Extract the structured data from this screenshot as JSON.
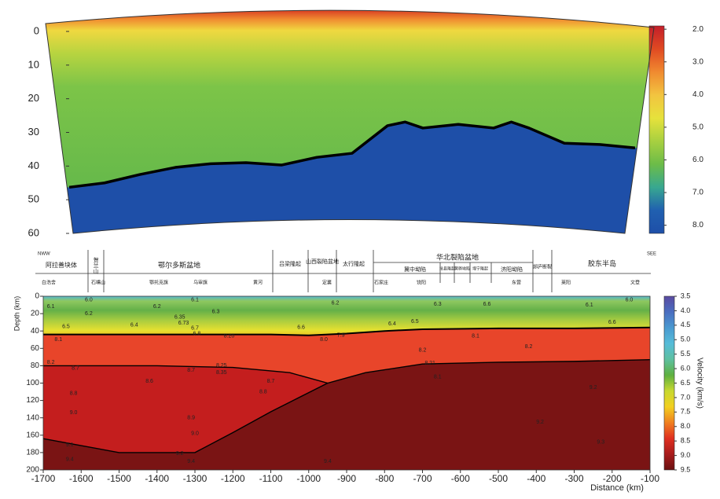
{
  "chart_data": [
    {
      "type": "contour",
      "x": [
        -1700,
        -1600,
        -1500,
        -1400,
        -1300,
        -1200,
        -1100,
        -1000,
        -900,
        -800,
        -750,
        -700,
        -600,
        -500,
        -450,
        -400,
        -300,
        -200,
        -100
      ],
      "values": [
        46.3,
        45,
        42.5,
        40.4,
        39.3,
        39,
        39.7,
        37.4,
        36.2,
        28,
        26.9,
        28.7,
        27.6,
        28.7,
        26.9,
        28.7,
        33.2,
        33.6,
        34.6
      ],
      "xlim": [
        -1700,
        -100
      ],
      "ylim": [
        0,
        60
      ],
      "y_inverted": true,
      "yticks": [
        0,
        10,
        20,
        30,
        40,
        50,
        60
      ],
      "line_color": "#000000",
      "below_color": "#1e4fa8",
      "colorbar": {
        "lim": [
          1.9,
          8.25
        ],
        "ticks": [
          {
            "value": 2,
            "label": "2.0"
          },
          {
            "value": 3,
            "label": "3.0"
          },
          {
            "value": 4,
            "label": "4.0"
          },
          {
            "value": 5,
            "label": "5.0"
          },
          {
            "value": 6,
            "label": "6.0"
          },
          {
            "value": 7,
            "label": "7.0"
          },
          {
            "value": 8,
            "label": "8.0"
          }
        ],
        "colormap": [
          "#c41e2a",
          "#e04a22",
          "#f08a30",
          "#f2c440",
          "#e6e23c",
          "#a8d040",
          "#6cbc48",
          "#38a890",
          "#2060b0",
          "#1e4fa8"
        ]
      }
    },
    {
      "type": "contour",
      "xlabel": "Distance (km)",
      "ylabel": "Depth (km)",
      "xlim": [
        -1700,
        -100
      ],
      "xticks": [
        -1700,
        -1600,
        -1500,
        -1400,
        -1300,
        -1200,
        -1100,
        -1000,
        -900,
        -800,
        -700,
        -600,
        -500,
        -400,
        -300,
        -200,
        -100
      ],
      "ylim": [
        0,
        200
      ],
      "y_inverted": true,
      "yticks": [
        0,
        20,
        40,
        60,
        80,
        100,
        120,
        140,
        160,
        180,
        200
      ],
      "series": [
        {
          "color": "#000000",
          "x": [
            -1700,
            -1500,
            -1300,
            -1100,
            -1000,
            -900,
            -800,
            -700,
            -500,
            -300,
            -100
          ],
          "values": [
            44,
            44,
            44,
            44,
            45,
            43,
            40,
            38,
            37,
            37,
            36
          ]
        },
        {
          "color": "#000000",
          "x": [
            -1700,
            -1400,
            -1200,
            -1050,
            -950,
            -850,
            -700,
            -500,
            -300,
            -100
          ],
          "values": [
            80,
            80,
            82,
            88,
            100,
            88,
            78,
            76,
            75,
            73
          ]
        },
        {
          "color": "#000000",
          "x": [
            -1700,
            -1600,
            -1500,
            -1300,
            -1200,
            -1100,
            -950
          ],
          "values": [
            164,
            172,
            180,
            180,
            157,
            133,
            100
          ]
        }
      ],
      "annotations": [
        {
          "text": "6.0",
          "x": -1580,
          "y": 4
        },
        {
          "text": "6.1",
          "x": -1680,
          "y": 12
        },
        {
          "text": "6.2",
          "x": -1580,
          "y": 20
        },
        {
          "text": "6.5",
          "x": -1640,
          "y": 35
        },
        {
          "text": "6.4",
          "x": -1460,
          "y": 33
        },
        {
          "text": "6.2",
          "x": -1400,
          "y": 12
        },
        {
          "text": "6.1",
          "x": -1300,
          "y": 4
        },
        {
          "text": "6.3",
          "x": -1245,
          "y": 18
        },
        {
          "text": "6.35",
          "x": -1340,
          "y": 24
        },
        {
          "text": "6.73",
          "x": -1330,
          "y": 31
        },
        {
          "text": "6.7",
          "x": -1300,
          "y": 37
        },
        {
          "text": "6.8",
          "x": -1295,
          "y": 43
        },
        {
          "text": "8.1",
          "x": -1660,
          "y": 50
        },
        {
          "text": "8.20",
          "x": -1210,
          "y": 46
        },
        {
          "text": "6.6",
          "x": -1020,
          "y": 36
        },
        {
          "text": "6.2",
          "x": -930,
          "y": 8
        },
        {
          "text": "8.2",
          "x": -1680,
          "y": 76
        },
        {
          "text": "8.7",
          "x": -1615,
          "y": 83
        },
        {
          "text": "8.7",
          "x": -1310,
          "y": 85
        },
        {
          "text": "8.25",
          "x": -1230,
          "y": 80
        },
        {
          "text": "8.35",
          "x": -1230,
          "y": 88
        },
        {
          "text": "8.6",
          "x": -1420,
          "y": 98
        },
        {
          "text": "8.7",
          "x": -1100,
          "y": 98
        },
        {
          "text": "8.8",
          "x": -1620,
          "y": 112
        },
        {
          "text": "8.8",
          "x": -1120,
          "y": 110
        },
        {
          "text": "9.0",
          "x": -1620,
          "y": 134
        },
        {
          "text": "8.9",
          "x": -1310,
          "y": 140
        },
        {
          "text": "9.0",
          "x": -1300,
          "y": 158
        },
        {
          "text": "9.1",
          "x": -1630,
          "y": 171
        },
        {
          "text": "9.2",
          "x": -1340,
          "y": 181
        },
        {
          "text": "9.4",
          "x": -1630,
          "y": 188
        },
        {
          "text": "9.4",
          "x": -1310,
          "y": 190
        },
        {
          "text": "9.4",
          "x": -950,
          "y": 190
        },
        {
          "text": "8.0",
          "x": -960,
          "y": 50
        },
        {
          "text": "7.9",
          "x": -915,
          "y": 45
        },
        {
          "text": "8.2",
          "x": -700,
          "y": 62
        },
        {
          "text": "8.2",
          "x": -420,
          "y": 58
        },
        {
          "text": "8.1",
          "x": -560,
          "y": 46
        },
        {
          "text": "6.1",
          "x": -260,
          "y": 10
        },
        {
          "text": "6.0",
          "x": -155,
          "y": 4
        },
        {
          "text": "6.6",
          "x": -200,
          "y": 30
        },
        {
          "text": "6.5",
          "x": -720,
          "y": 29
        },
        {
          "text": "6.4",
          "x": -780,
          "y": 32
        },
        {
          "text": "6.3",
          "x": -660,
          "y": 9
        },
        {
          "text": "6.6",
          "x": -530,
          "y": 9
        },
        {
          "text": "8.21",
          "x": -680,
          "y": 77
        },
        {
          "text": "8.1",
          "x": -660,
          "y": 93
        },
        {
          "text": "9.2",
          "x": -390,
          "y": 145
        },
        {
          "text": "9.2",
          "x": -250,
          "y": 105
        },
        {
          "text": "9.3",
          "x": -230,
          "y": 168
        }
      ],
      "colorbar": {
        "label": "Velocity (km/s)",
        "lim": [
          3.5,
          9.5
        ],
        "ticks": [
          3.5,
          {
            "value": 4,
            "label": "4.0"
          },
          4.5,
          {
            "value": 5,
            "label": "5.0"
          },
          5.5,
          {
            "value": 6,
            "label": "6.0"
          },
          6.5,
          {
            "value": 7,
            "label": "7.0"
          },
          7.5,
          {
            "value": 8,
            "label": "8.0"
          },
          8.5,
          {
            "value": 9,
            "label": "9.0"
          },
          9.5
        ],
        "colormap": [
          "#5a4aa0",
          "#4a6ec0",
          "#4a9ad0",
          "#56bcd8",
          "#5ec0a0",
          "#5eb040",
          "#c8d830",
          "#f2d020",
          "#f08020",
          "#e03020",
          "#a81c1c",
          "#6a1010"
        ]
      }
    }
  ],
  "section": {
    "left": "NWW",
    "right": "SEE",
    "units": [
      "阿拉善块体",
      "贺兰山",
      "鄂尔多斯盆地",
      "吕梁隆起",
      "山西裂陷盆地",
      "太行隆起",
      "华北裂陷盆地",
      "冀中坳陷",
      "沧县隆起",
      "黄骅坳陷",
      "埕宁隆起",
      "济阳坳陷",
      "郯庐断裂",
      "胶东半岛"
    ],
    "stations": [
      "白浩舍",
      "石嘴山",
      "鄂托克旗",
      "乌审旗",
      "黄河",
      "定襄",
      "石家庄",
      "饶阳",
      "东营",
      "莱阳",
      "文登"
    ]
  }
}
